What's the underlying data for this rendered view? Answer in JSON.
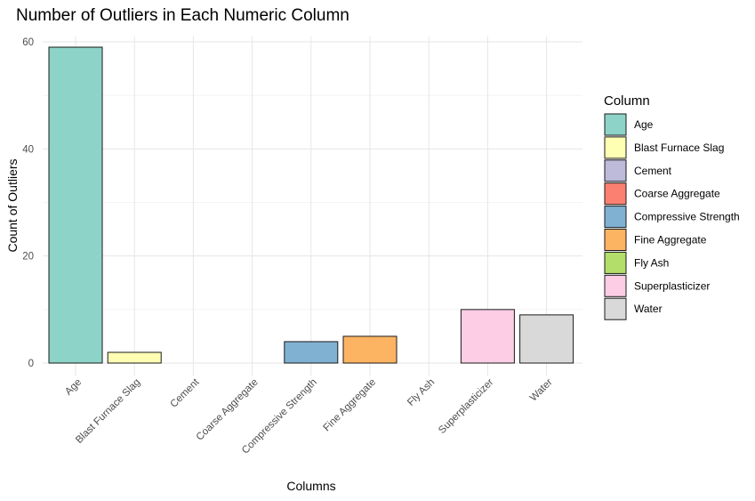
{
  "chart_data": {
    "type": "bar",
    "title": "Number of Outliers in Each Numeric Column",
    "xlabel": "Columns",
    "ylabel": "Count of Outliers",
    "ylim": [
      0,
      61
    ],
    "yticks": [
      0,
      20,
      40,
      60
    ],
    "grid": true,
    "legend": {
      "title": "Column",
      "placement": "right"
    },
    "categories": [
      "Age",
      "Blast Furnace Slag",
      "Cement",
      "Coarse Aggregate",
      "Compressive Strength",
      "Fine Aggregate",
      "Fly Ash",
      "Superplasticizer",
      "Water"
    ],
    "values": [
      59,
      2,
      0,
      0,
      4,
      5,
      0,
      10,
      9
    ],
    "colors": [
      "#8DD3C7",
      "#FFFFB3",
      "#BEBADA",
      "#FB8072",
      "#80B1D3",
      "#FDB462",
      "#B3DE69",
      "#FCCDE5",
      "#D9D9D9"
    ]
  }
}
